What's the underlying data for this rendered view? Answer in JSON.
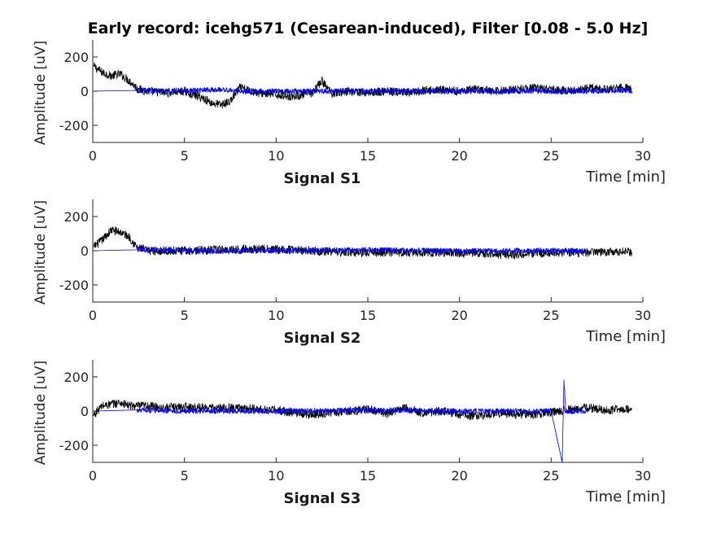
{
  "title": "Early record: icehg571 (Cesarean-induced), Filter [0.08 - 5.0 Hz]",
  "chart_data": [
    {
      "type": "line",
      "xlabel": "Signal S1",
      "x_unit_label": "Time [min]",
      "ylabel": "Amplitude [uV]",
      "xlim": [
        0,
        30
      ],
      "ylim": [
        -300,
        300
      ],
      "xticks": [
        0,
        5,
        10,
        15,
        20,
        25,
        30
      ],
      "yticks": [
        -200,
        0,
        200
      ],
      "series": [
        {
          "color": "#000000",
          "x": [
            0,
            0.5,
            1,
            1.5,
            2,
            2.5,
            3,
            4,
            5,
            6,
            6.5,
            7,
            7.5,
            8,
            9,
            10,
            11,
            12,
            12.5,
            13,
            14,
            15,
            16,
            17,
            18,
            19,
            20,
            21,
            22,
            23,
            24,
            25,
            26,
            27,
            28,
            29,
            29.4
          ],
          "y": [
            150,
            110,
            90,
            100,
            60,
            10,
            0,
            -10,
            0,
            -40,
            -70,
            -80,
            -60,
            20,
            -10,
            -20,
            -30,
            -10,
            60,
            -10,
            0,
            -10,
            0,
            -10,
            0,
            10,
            0,
            10,
            0,
            10,
            20,
            10,
            0,
            20,
            10,
            20,
            10
          ]
        },
        {
          "color": "#0000ff",
          "x": [
            0,
            2.4,
            2.5,
            5,
            7,
            8,
            10,
            15,
            20,
            25,
            27,
            29,
            29.4
          ],
          "y": [
            0,
            0,
            5,
            0,
            10,
            0,
            0,
            0,
            0,
            0,
            0,
            5,
            0
          ]
        }
      ]
    },
    {
      "type": "line",
      "xlabel": "Signal S2",
      "x_unit_label": "Time [min]",
      "ylabel": "Amplitude [uV]",
      "xlim": [
        0,
        30
      ],
      "ylim": [
        -300,
        300
      ],
      "xticks": [
        0,
        5,
        10,
        15,
        20,
        25,
        30
      ],
      "yticks": [
        -200,
        0,
        200
      ],
      "series": [
        {
          "color": "#000000",
          "x": [
            0,
            0.5,
            1,
            1.5,
            2,
            2.4,
            3,
            5,
            7,
            9,
            11,
            13,
            15,
            17,
            19,
            21,
            23,
            25,
            27,
            28,
            29,
            29.4
          ],
          "y": [
            20,
            60,
            120,
            110,
            80,
            20,
            0,
            0,
            5,
            10,
            5,
            -5,
            -10,
            -10,
            -10,
            -15,
            -25,
            -10,
            -10,
            -10,
            -5,
            -10
          ]
        },
        {
          "color": "#0000ff",
          "x": [
            0,
            2.4,
            2.5,
            5,
            10,
            15,
            20,
            25,
            26.9
          ],
          "y": [
            0,
            0,
            5,
            0,
            0,
            5,
            0,
            0,
            0
          ]
        }
      ]
    },
    {
      "type": "line",
      "xlabel": "Signal S3",
      "x_unit_label": "Time [min]",
      "ylabel": "Amplitude [uV]",
      "xlim": [
        0,
        30
      ],
      "ylim": [
        -300,
        300
      ],
      "xticks": [
        0,
        5,
        10,
        15,
        20,
        25,
        30
      ],
      "yticks": [
        -200,
        0,
        200
      ],
      "series": [
        {
          "color": "#000000",
          "x": [
            0,
            0.5,
            1,
            1.5,
            2,
            3,
            4,
            5,
            6,
            7,
            8,
            9,
            10,
            11,
            12,
            13,
            14,
            15,
            16,
            17,
            18,
            19,
            20,
            21,
            22,
            23,
            24,
            25,
            26,
            27,
            28,
            29,
            29.4
          ],
          "y": [
            -30,
            30,
            40,
            50,
            30,
            30,
            20,
            25,
            20,
            15,
            20,
            10,
            5,
            -10,
            -20,
            -10,
            0,
            10,
            -15,
            20,
            -10,
            0,
            -20,
            -30,
            -10,
            -20,
            -20,
            -5,
            10,
            20,
            5,
            10,
            10
          ]
        },
        {
          "color": "#0000ff",
          "x": [
            0,
            2.4,
            2.5,
            5,
            10,
            15,
            20,
            25,
            25.6,
            25.7,
            25.8,
            27
          ],
          "y": [
            0,
            0,
            5,
            0,
            0,
            5,
            0,
            0,
            -300,
            180,
            0,
            0
          ]
        }
      ]
    }
  ]
}
